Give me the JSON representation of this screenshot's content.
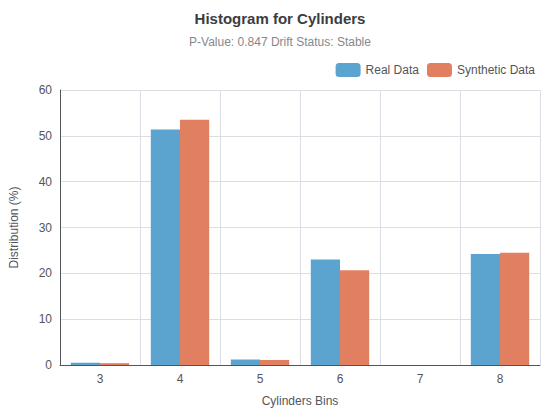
{
  "chart_data": {
    "type": "bar",
    "title": "Histogram for Cylinders",
    "subtitle": "P-Value: 0.847 Drift Status: Stable",
    "xlabel": "Cylinders Bins",
    "ylabel": "Distribution (%)",
    "categories": [
      3,
      4,
      5,
      6,
      7,
      8
    ],
    "series": [
      {
        "name": "Real Data",
        "color": "#5BA4CF",
        "values": [
          0.5,
          51.4,
          1.2,
          23.0,
          0.0,
          24.2
        ]
      },
      {
        "name": "Synthetic Data",
        "color": "#E08060",
        "values": [
          0.4,
          53.5,
          1.1,
          20.7,
          0.0,
          24.5
        ]
      }
    ],
    "ylim": [
      0,
      60
    ],
    "yticks": [
      0,
      10,
      20,
      30,
      40,
      50,
      60
    ],
    "grid": true,
    "legend": "upper right"
  }
}
